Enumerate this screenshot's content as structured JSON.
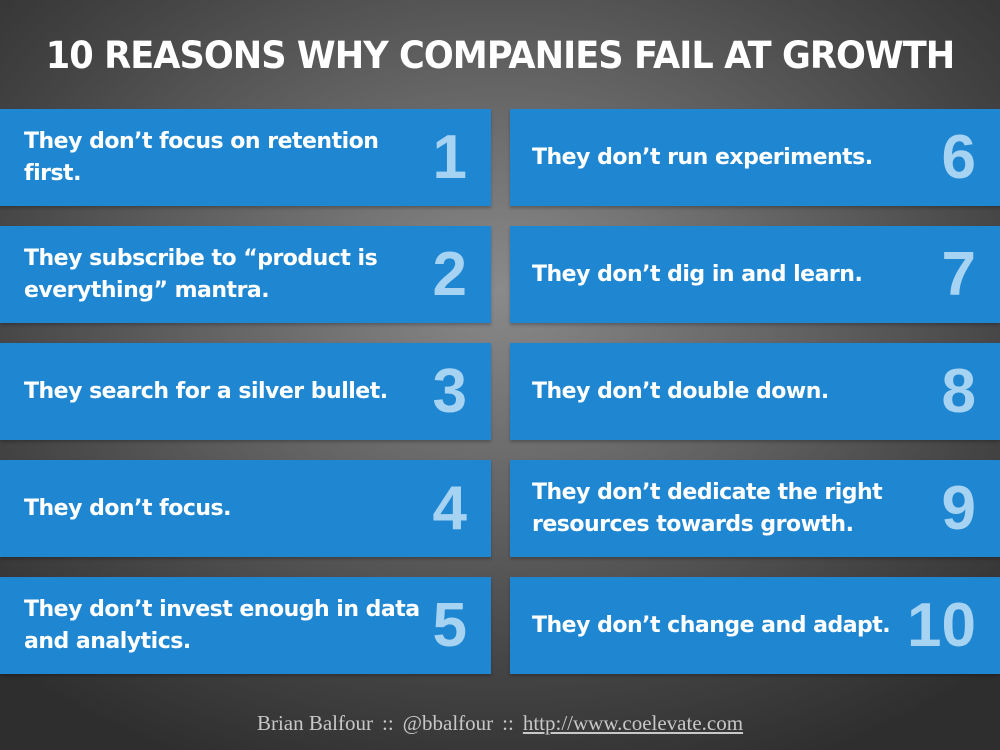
{
  "slide": {
    "title": "10 REASONS WHY COMPANIES FAIL AT GROWTH",
    "reasons_left": [
      {
        "number": "1",
        "text": "They don’t focus on retention first."
      },
      {
        "number": "2",
        "text": "They subscribe to “product is everything” mantra."
      },
      {
        "number": "3",
        "text": "They search for a silver bullet."
      },
      {
        "number": "4",
        "text": "They don’t focus."
      },
      {
        "number": "5",
        "text": "They don’t invest enough in data and analytics."
      }
    ],
    "reasons_right": [
      {
        "number": "6",
        "text": "They don’t run experiments."
      },
      {
        "number": "7",
        "text": "They don’t dig in and learn."
      },
      {
        "number": "8",
        "text": "They don’t double down."
      },
      {
        "number": "9",
        "text": "They don’t dedicate the right resources towards growth."
      },
      {
        "number": "10",
        "text": "They don’t change and adapt."
      }
    ]
  },
  "footer": {
    "author": "Brian Balfour",
    "separator": "::",
    "handle": "@bbalfour",
    "url": "http://www.coelevate.com"
  },
  "colors": {
    "card_background": "#1f87d2",
    "number_color": "#a7d3f2",
    "title_color": "#ffffff"
  }
}
